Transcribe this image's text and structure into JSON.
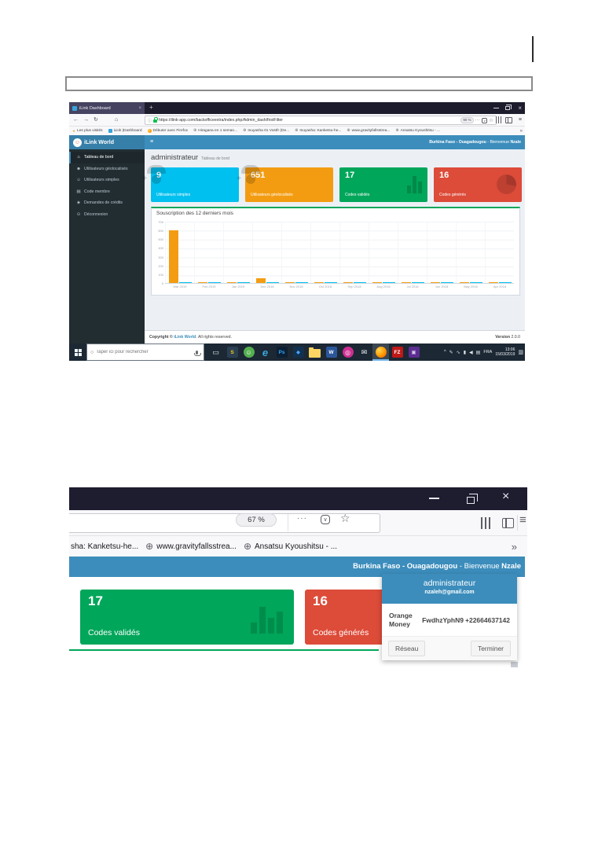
{
  "icons": {
    "back": "←",
    "forward": "→",
    "reload": "↻",
    "home": "⌂",
    "globe": "⊕",
    "hamburger": "≡",
    "overflow": "»",
    "star": "☆",
    "dots": "···",
    "info": "ⓘ",
    "new_tab": "+",
    "close": "×",
    "search": "○"
  },
  "colors": {
    "header_blue": "#3c8dbc",
    "brand_blue_dark": "#367fa9",
    "sidebar_dark": "#222d32",
    "content_bg": "#ecf0f5",
    "success_green": "#00a65a",
    "danger_red": "#dd4b39",
    "warning_orange": "#f39c12",
    "info_cyan": "#00c0ef"
  },
  "document": {
    "note_box_text": ""
  },
  "screenshot1": {
    "browser": {
      "tab_title": "iLink Dashboard",
      "url": "https://ilink-app.com/backofficeextra/index.php/Admin_dash/firstFilter",
      "zoom_badge": "90 %",
      "bookmarks": [
        {
          "label": "Les plus visités",
          "icon": "star"
        },
        {
          "label": "iLink |Dashboard",
          "icon": "ilink"
        },
        {
          "label": "Débuter avec Firefox",
          "icon": "firefox"
        },
        {
          "label": "Hiragana en 1 seman...",
          "icon": "globe"
        },
        {
          "label": "Inuyasha 01 Vostfr (De...",
          "icon": "globe"
        },
        {
          "label": "Inuyasha: Kanketsu-he...",
          "icon": "globe"
        },
        {
          "label": "www.gravityfallsstrea...",
          "icon": "globe"
        },
        {
          "label": "Ansatsu Kyoushitsu - ...",
          "icon": "globe"
        }
      ]
    },
    "app": {
      "brand": "iLink World",
      "welcome": {
        "location": "Burkina Faso - Ouagadougou",
        "greeting": " - Bienvenue ",
        "name": "Nzale"
      },
      "sidebar": [
        {
          "label": "Tableau de bord",
          "glyph": "⌂",
          "active": true
        },
        {
          "label": "Utilisateurs géolocalisés",
          "glyph": "☻",
          "active": false
        },
        {
          "label": "Utilisateurs simples",
          "glyph": "☺",
          "active": false
        },
        {
          "label": "Code membre",
          "glyph": "▤",
          "active": false
        },
        {
          "label": "Demandes de crédits",
          "glyph": "◈",
          "active": false
        },
        {
          "label": "Déconnexion",
          "glyph": "⊙",
          "active": false
        }
      ],
      "page_title": "administrateur",
      "page_subtitle": "Tableau de bord",
      "cards": [
        {
          "value": "9",
          "label": "Utilisateurs simples",
          "color": "#00c0ef",
          "icon": "user-plus-icon"
        },
        {
          "value": "651",
          "label": "Utilisateurs géolocalisés",
          "color": "#f39c12",
          "icon": "user-plus-icon"
        },
        {
          "value": "17",
          "label": "Codes validés",
          "color": "#00a65a",
          "icon": "bar-chart-icon"
        },
        {
          "value": "16",
          "label": "Codes générés",
          "color": "#dd4b39",
          "icon": "pie-chart-icon"
        }
      ],
      "footer": {
        "copyright_prefix": "Copyright © ",
        "copyright_link": "iLink World",
        "copyright_suffix": ". All rights reserved.",
        "version_label": "Version",
        "version_value": "2.0.0"
      }
    },
    "taskbar": {
      "search_placeholder": "Taper ici pour rechercher",
      "apps": [
        {
          "name": "task-view-icon",
          "glyph": "▭",
          "fg": "#dde6ee",
          "bg": "transparent",
          "cls": "plain"
        },
        {
          "name": "store-icon",
          "glyph": "S",
          "fg": "#f3c614",
          "bg": "#2b3f52",
          "cls": "sq"
        },
        {
          "name": "green-app-icon",
          "glyph": "☺",
          "fg": "#ffffff",
          "bg": "#55b04f",
          "cls": "round"
        },
        {
          "name": "edge-icon",
          "glyph": "e",
          "fg": "#38a9e0",
          "bg": "transparent",
          "cls": "edge"
        },
        {
          "name": "photoshop-icon",
          "glyph": "Ps",
          "fg": "#31a8ff",
          "bg": "#0c1f33",
          "cls": "sq"
        },
        {
          "name": "photos-app-icon",
          "glyph": "◆",
          "fg": "#4aa3ff",
          "bg": "#12314f",
          "cls": "sq"
        },
        {
          "name": "file-explorer-icon",
          "glyph": "",
          "fg": "#5c4813",
          "bg": "",
          "cls": "folder"
        },
        {
          "name": "word-icon",
          "glyph": "W",
          "fg": "#ffffff",
          "bg": "#2b579a",
          "cls": "sq"
        },
        {
          "name": "instagram-icon",
          "glyph": "◎",
          "fg": "#ffffff",
          "bg": "#cf2e92",
          "cls": "round"
        },
        {
          "name": "mail-icon",
          "glyph": "✉",
          "fg": "#eef3f8",
          "bg": "transparent",
          "cls": "plain"
        },
        {
          "name": "firefox-icon",
          "glyph": "",
          "fg": "#ffffff",
          "bg": "",
          "cls": "ff",
          "active": true
        },
        {
          "name": "filezilla-icon",
          "glyph": "FZ",
          "fg": "#ffffff",
          "bg": "#bf1818",
          "cls": "sq"
        },
        {
          "name": "purple-app-icon",
          "glyph": "▣",
          "fg": "#d9c8f0",
          "bg": "#5c2d91",
          "cls": "sq"
        }
      ],
      "tray_icons": [
        {
          "name": "hidden-icons-chevron-icon",
          "glyph": "^"
        },
        {
          "name": "pen-icon",
          "glyph": "✎"
        },
        {
          "name": "network-icon",
          "glyph": "∿"
        },
        {
          "name": "battery-icon",
          "glyph": "▮"
        },
        {
          "name": "volume-icon",
          "glyph": "◀"
        },
        {
          "name": "keyboard-icon",
          "glyph": "▤"
        }
      ],
      "tray_language": "FRA",
      "tray_time": "13:06",
      "tray_date": "15/03/2019",
      "notification_glyph": "▥"
    }
  },
  "chart_data": {
    "type": "bar",
    "title": "Souscription des 12 derniers mois",
    "categories": [
      "Mar 2019",
      "Feb 2019",
      "Jan 2019",
      "Dec 2018",
      "Nov 2018",
      "Oct 2018",
      "Sep 2018",
      "Aug 2018",
      "Jul 2018",
      "Jun 2018",
      "May 2018",
      "Apr 2018"
    ],
    "series": [
      {
        "name": "Utilisateurs géolocalisés",
        "color": "#f39c12",
        "values": [
          600,
          4,
          4,
          55,
          4,
          4,
          4,
          4,
          4,
          4,
          4,
          4
        ]
      },
      {
        "name": "Utilisateurs simples",
        "color": "#00c0ef",
        "values": [
          3,
          2,
          2,
          3,
          2,
          2,
          2,
          2,
          2,
          2,
          2,
          2
        ]
      }
    ],
    "ylim": [
      0,
      700
    ],
    "yticks": [
      0,
      100,
      200,
      300,
      400,
      500,
      600,
      700
    ],
    "grid": true,
    "legend": "none"
  },
  "screenshot2": {
    "browser": {
      "zoom_badge": "67 %",
      "bookmarks": [
        {
          "label": "sha: Kanketsu-he...",
          "icon": "none"
        },
        {
          "label": "www.gravityfallsstrea...",
          "icon": "globe"
        },
        {
          "label": "Ansatsu Kyoushitsu - ...",
          "icon": "globe"
        }
      ]
    },
    "app": {
      "welcome": {
        "location": "Burkina Faso - Ouagadougou",
        "greeting": " - Bienvenue ",
        "name": "Nzale"
      },
      "cards": [
        {
          "value": "17",
          "label": "Codes validés",
          "color": "#00a65a"
        },
        {
          "value": "16",
          "label": "Codes générés",
          "color": "#dd4b39"
        }
      ],
      "user_menu": {
        "username": "administrateur",
        "email": "nzaleh@gmail.com",
        "network": "Orange Money",
        "code": "FwdhzYphN9",
        "phone": "+22664637142",
        "left_button": "Réseau",
        "right_button": "Terminer"
      }
    }
  }
}
